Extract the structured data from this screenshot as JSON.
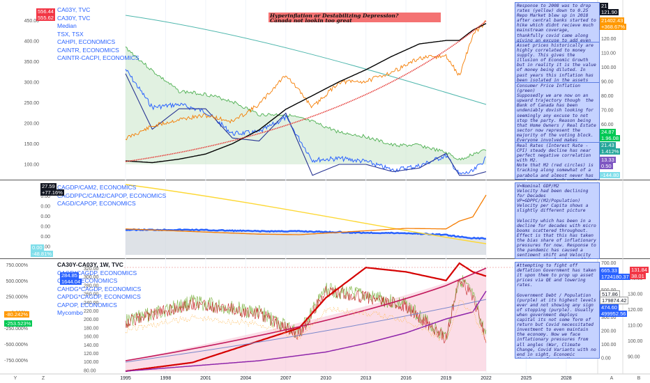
{
  "title_note": {
    "line1": "Hyperinflation or Destabilizing Depression?",
    "line2": "Canada not lookin too great"
  },
  "panes": [
    {
      "legend": [
        "CA03Y, TVC",
        "CA30Y, TVC",
        "Median",
        "TSX, TSX",
        "CAHPI, ECONOMICS",
        "CAINTR, ECONOMICS",
        "CAINTR-CACPI, ECONOMICS"
      ],
      "right_ticks": [
        "120.00",
        "110.00",
        "100.00",
        "90.00",
        "80.00",
        "70.00",
        "60.00",
        "50.00",
        "40.00"
      ],
      "left_ticks": [
        "450.00",
        "400.00",
        "350.00",
        "300.00",
        "250.00",
        "200.00",
        "150.00",
        "100.00"
      ],
      "badges_left": [
        {
          "text": "556.44",
          "color": "#f23645"
        },
        {
          "text": "555.62",
          "color": "#f23645"
        }
      ],
      "badges_right": [
        {
          "text": "21",
          "color": "#131722"
        },
        {
          "text": "121.90",
          "color": "#131722"
        },
        {
          "text": "21402.43",
          "color": "#ff9800"
        },
        {
          "text": "+368.67%",
          "color": "#ff9800"
        },
        {
          "text": "24.87",
          "color": "#00c853"
        },
        {
          "text": "1.96.08",
          "color": "#00c853"
        },
        {
          "text": "21.43",
          "color": "#26a69a"
        },
        {
          "text": "1.412%",
          "color": "#26a69a"
        },
        {
          "text": "13.33",
          "color": "#7e57c2"
        },
        {
          "text": "0.50",
          "color": "#7e57c2"
        },
        {
          "text": "-144.80",
          "color": "#80deea"
        }
      ],
      "notes": [
        "Response to 2008 was to drop rates (yellow) down to 0.25\nRepo Market blew up in 2018 after central banks started to hike which didnt recieve much mainstream coverage, thankfully covid came along giving an excuse to add even more liquidity and drop rates again.",
        "Asset prices historically are highly correlated to money supply. This gives the illusion of Economic Growth but in reality it is the value of money being diluted. In past years this inflation has been isolated in the assets that rich people own but it has since started to spill over into goods/commodities as demonstrated by rising CPI (green)",
        "Consumer Price Inflation (green)\nSupposedly we are now on an upward trajectory though  the Bank of Canada has been undeniably dovish looking for seemingly any excuse to not stop the party. Reason being that Home Owners / Real Estate sector now represent the majority of the voting block. Everyone involved makes profits so there is no incentive to change until devaluation begins to ravage a large enough portion of the population.",
        "Real Rates (Interest Rate - CPI) steady decline has near perfect negative correlation with M2.\nNote that M2 (red circles) is tracking along somewhat of a parabola and almost never has a decrease, only levels off at best."
      ]
    },
    {
      "legend": [
        "CAGDP/CAM2, ECONOMICS",
        "CAGDPPC/CAM2/CAPOP, ECONOMICS",
        "CAGD/CAPOP, ECONOMICS"
      ],
      "left_ticks": [
        "0.00",
        "0.00",
        "0.00",
        "0.00",
        "0.00",
        "0.00"
      ],
      "badges_left": [
        {
          "text": "27.59",
          "color": "#131722"
        },
        {
          "text": "+77.16%",
          "color": "#131722"
        },
        {
          "text": "0.00",
          "color": "#80deea"
        },
        {
          "text": "-48.81%",
          "color": "#80deea"
        }
      ],
      "notes": [
        "V=Nominal GDP/M2\nVelocity had been declining for Decades\nVP=GDPPC/(M2/Population)\nVelocity per Capita shows a slightly different picture\n\nVelocity which has been in a decline for decades with micro booms scattered throughout. Effect is that this has taken the bias share of inflationary pressures for now. Response to the pandemic has caused a sentiment shift and Velocity appears to be leveling off / picking up which could mean that vast amounts of capital in savings"
      ]
    },
    {
      "legend": [
        "CA30Y-CA03Y, 1W, TVC",
        "CAGD*CAGDP, ECONOMICS",
        "CAGDP, ECONOMICS",
        "CAHDG*CAGDP, ECONOMICS",
        "CAPDG*CAGDP, ECONOMICS",
        "CAPOP, ECONOMICS",
        "Mycombo"
      ],
      "left_ticks": [
        "750.000%",
        "500.000%",
        "250.000%",
        "0.000%",
        "-250.000%",
        "-500.000%",
        "-750.000%"
      ],
      "mid_ticks": [
        "320.00",
        "300.00",
        "280.00",
        "260.00",
        "240.00",
        "220.00",
        "200.00",
        "180.00",
        "160.00",
        "140.00",
        "120.00",
        "100.00",
        "80.00"
      ],
      "right_ticks": [
        "700.00",
        "600.00",
        "500.00",
        "400.00",
        "300.00",
        "200.00",
        "100.00",
        "0.00"
      ],
      "far_right_ticks": [
        "140.00",
        "130.00",
        "120.00",
        "110.00",
        "100.00",
        "90.00"
      ],
      "badges_left": [
        {
          "text": "284.85",
          "color": "#2962ff"
        },
        {
          "text": "1644.04",
          "color": "#2962ff"
        },
        {
          "text": "-80.242%",
          "color": "#ff9800"
        },
        {
          "text": "-253.523%",
          "color": "#00c853"
        }
      ],
      "badges_right": [
        {
          "text": "665.33",
          "color": "#2962ff"
        },
        {
          "text": "1724180.37",
          "color": "#2962ff"
        },
        {
          "text": "517.86",
          "color": "#ffffff"
        },
        {
          "text": "179874.42",
          "color": "#ffffff"
        },
        {
          "text": "474.60",
          "color": "#2962ff"
        },
        {
          "text": "499952.56",
          "color": "#2962ff"
        },
        {
          "text": "131.84",
          "color": "#f23645"
        },
        {
          "text": "38.01",
          "color": "#f23645"
        }
      ],
      "notes": [
        "Attempting to fight off deflation Government has taken it upon them to prop up asset prices via QE and lowering rates.\n\nGovernment Debt / Population (purple) at its highest levels ever and not showing any sign of stopping (purple). Usually when government deploys capital its not some form of return but Covid necessitated investment to even maintain the economy. Now we face inflationary pressures from all angles (War, Climate Change, Covid Variants with no end in sight, Economic Shutdowns, Foreign Money Laundering, Shortsighted Governments turning a blind eye)"
      ]
    }
  ],
  "x_axis": [
    "1995",
    "1998",
    "2001",
    "2004",
    "2007",
    "2010",
    "2013",
    "2016",
    "2019",
    "2022",
    "2025",
    "2028"
  ],
  "corner_labels": {
    "left": "Y",
    "mid": "Z",
    "a": "A",
    "b": "B"
  },
  "chart_data": [
    {
      "type": "line",
      "x": [
        1995,
        1997,
        1999,
        2001,
        2003,
        2005,
        2007,
        2009,
        2011,
        2013,
        2015,
        2017,
        2019,
        2020,
        2021,
        2022
      ],
      "series": [
        {
          "name": "TSX, TSX",
          "values": [
            4200,
            6000,
            7000,
            7600,
            6700,
            9200,
            13600,
            8800,
            12500,
            12600,
            14000,
            16000,
            16300,
            13400,
            19400,
            21402
          ]
        },
        {
          "name": "CAHPI, ECONOMICS",
          "values": [
            42,
            41,
            43,
            46,
            52,
            60,
            72,
            80,
            88,
            95,
            103,
            110,
            112,
            112,
            118,
            121.9
          ]
        },
        {
          "name": "CA30Y, TVC",
          "values": [
            9,
            7.4,
            6,
            5.8,
            5.3,
            4.4,
            4.4,
            3.9,
            3.2,
            2.9,
            2.3,
            2.3,
            1.8,
            1.3,
            1.7,
            1.96
          ]
        },
        {
          "name": "CA03Y, TVC",
          "values": [
            7.5,
            4.9,
            5.1,
            4.6,
            3.1,
            3.2,
            4.2,
            1.3,
            1.4,
            1.2,
            0.6,
            0.9,
            1.6,
            0.3,
            0.5,
            1.41
          ]
        },
        {
          "name": "CAINTR, ECONOMICS",
          "values": [
            7.2,
            3.4,
            4.8,
            4.8,
            2.8,
            2.6,
            4.5,
            0.25,
            1,
            1,
            0.5,
            0.75,
            1.75,
            0.25,
            0.25,
            0.5
          ]
        }
      ]
    },
    {
      "type": "line",
      "x": [
        1995,
        2000,
        2005,
        2008,
        2012,
        2016,
        2019,
        2020,
        2021,
        2022
      ],
      "series": [
        {
          "name": "CAGDP/CAM2, ECONOMICS",
          "values": [
            1.0,
            1.0,
            0.95,
            0.95,
            0.9,
            0.88,
            0.82,
            0.75,
            0.7,
            0.69
          ]
        },
        {
          "name": "CAGD/CAPOP, ECONOMICS",
          "values": [
            0.55,
            0.5,
            0.45,
            0.44,
            0.5,
            0.56,
            0.55,
            0.7,
            0.78,
            1.2
          ]
        }
      ]
    },
    {
      "type": "line",
      "x": [
        1995,
        2000,
        2005,
        2008,
        2010,
        2013,
        2016,
        2019,
        2020,
        2021,
        2022
      ],
      "series": [
        {
          "name": "CA30Y-CA03Y, 1W, TVC",
          "values": [
            50,
            200,
            120,
            -50,
            300,
            250,
            180,
            -80,
            400,
            250,
            -80
          ]
        },
        {
          "name": "CAGD*CAGDP, ECONOMICS",
          "values": [
            80,
            100,
            150,
            180,
            250,
            320,
            310,
            290,
            330,
            310,
            300
          ]
        },
        {
          "name": "CAPOP, ECONOMICS",
          "values": [
            80,
            95,
            110,
            125,
            135,
            160,
            190,
            230,
            240,
            250,
            310
          ]
        }
      ]
    }
  ]
}
